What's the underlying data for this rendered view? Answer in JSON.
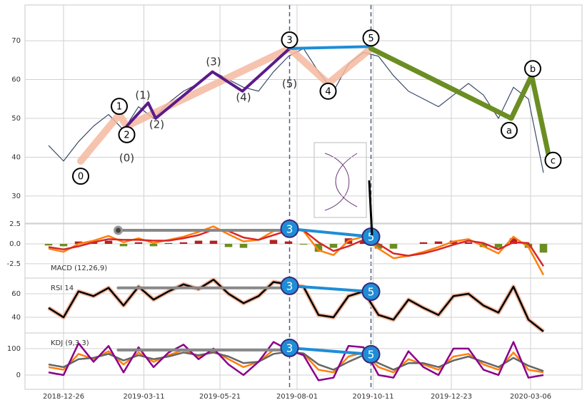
{
  "chart_data": {
    "type": "line",
    "xlim": [
      "2018-11-20",
      "2020-04-23"
    ],
    "xticks": [
      "2018-12-26",
      "2019-03-11",
      "2019-05-21",
      "2019-08-01",
      "2019-10-11",
      "2019-12-23",
      "2020-03-06"
    ],
    "vlines": [
      "2019-07-25",
      "2019-10-09"
    ],
    "x": [
      "2018-12-12",
      "2018-12-26",
      "2019-01-09",
      "2019-01-23",
      "2019-02-06",
      "2019-02-20",
      "2019-03-06",
      "2019-03-20",
      "2019-04-03",
      "2019-04-17",
      "2019-05-01",
      "2019-05-15",
      "2019-05-29",
      "2019-06-12",
      "2019-06-26",
      "2019-07-10",
      "2019-07-24",
      "2019-08-07",
      "2019-08-21",
      "2019-09-04",
      "2019-09-18",
      "2019-10-02",
      "2019-10-16",
      "2019-10-30",
      "2019-11-13",
      "2019-11-27",
      "2019-12-11",
      "2019-12-25",
      "2020-01-08",
      "2020-01-22",
      "2020-02-05",
      "2020-02-19",
      "2020-03-04",
      "2020-03-18"
    ],
    "grid": true,
    "panels": [
      {
        "ylim": [
          23,
          79.2
        ],
        "yticks": [
          30,
          40,
          50,
          60,
          70
        ],
        "series": [
          {
            "color": "#3a4a6b",
            "values": [
              43,
              39,
              44,
              48,
              51,
              47,
              53,
              50,
              54,
              57,
              59,
              62,
              60,
              58,
              57,
              62,
              66,
              68,
              62,
              57,
              64,
              67,
              66,
              61,
              57,
              55,
              53,
              56,
              59,
              56,
              50,
              58,
              55,
              36
            ]
          }
        ],
        "lines": [
          {
            "color": "#f4b9a0",
            "style": "band",
            "x": [
              "2019-01-11",
              "2019-02-16",
              "2019-02-23",
              "2019-07-25",
              "2019-08-30",
              "2019-10-09"
            ],
            "y": [
              39,
              51,
              48,
              68,
              59,
              68
            ]
          },
          {
            "color": "#5b1a8a",
            "style": "thick",
            "x": [
              "2019-02-23",
              "2019-03-15",
              "2019-03-22",
              "2019-05-14",
              "2019-06-11",
              "2019-07-25"
            ],
            "y": [
              48,
              54,
              50,
              62,
              57,
              68
            ]
          },
          {
            "color": "#1f8dd6",
            "style": "thick",
            "x": [
              "2019-07-25",
              "2019-10-09"
            ],
            "y": [
              68,
              68.5
            ]
          },
          {
            "color": "#6b8e23",
            "style": "heavy",
            "x": [
              "2019-10-09",
              "2020-02-17",
              "2020-03-07",
              "2020-03-24"
            ],
            "y": [
              68,
              50,
              61,
              39
            ]
          }
        ],
        "markers": [
          {
            "label": "0",
            "x": "2019-01-11",
            "y": 35.1
          },
          {
            "label": "1",
            "x": "2019-02-16",
            "y": 53.1
          },
          {
            "label": "2",
            "x": "2019-02-23",
            "y": 45.8
          },
          {
            "label": "3",
            "x": "2019-07-25",
            "y": 70.2
          },
          {
            "label": "4",
            "x": "2019-08-30",
            "y": 57
          },
          {
            "label": "5",
            "x": "2019-10-09",
            "y": 70.7
          },
          {
            "label": "a",
            "x": "2020-02-15",
            "y": 46.9
          },
          {
            "label": "b",
            "x": "2020-03-08",
            "y": 62.8
          },
          {
            "label": "c",
            "x": "2020-03-27",
            "y": 39.2
          }
        ],
        "annotations": [
          {
            "label": "(0)",
            "x": "2019-02-23",
            "y": 39.7
          },
          {
            "label": "(1)",
            "x": "2019-03-10",
            "y": 55.9
          },
          {
            "label": "(2)",
            "x": "2019-03-23",
            "y": 48.3
          },
          {
            "label": "(3)",
            "x": "2019-05-15",
            "y": 64.5
          },
          {
            "label": "(4)",
            "x": "2019-06-12",
            "y": 55.3
          },
          {
            "label": "(5)",
            "x": "2019-07-25",
            "y": 58.8
          }
        ]
      },
      {
        "label": "MACD (12,26,9)",
        "ylim": [
          -4.3,
          2.6
        ],
        "yticks": [
          2.5,
          {
            "value": 0,
            "label": "0.0"
          },
          -2.5
        ],
        "histogram": {
          "up_color": "#b22222",
          "down_color": "#6b8e23",
          "values": [
            -0.2,
            -0.3,
            0.3,
            0.2,
            0.4,
            -0.3,
            0.2,
            -0.3,
            0.1,
            0.2,
            0.4,
            0.4,
            -0.4,
            -0.5,
            0.0,
            0.5,
            0.3,
            -0.1,
            -1.0,
            -0.5,
            0.7,
            0.4,
            -0.6,
            -0.6,
            0.0,
            0.2,
            0.3,
            0.4,
            0.2,
            -0.4,
            -0.5,
            0.7,
            -0.5,
            -1.1
          ]
        },
        "series": [
          {
            "color": "#ff7f0e",
            "values": [
              -0.6,
              -1.0,
              0.0,
              0.4,
              1.0,
              0.2,
              0.7,
              0.1,
              0.5,
              0.9,
              1.5,
              2.2,
              1.2,
              0.3,
              0.5,
              1.6,
              2.0,
              1.6,
              -0.8,
              -1.4,
              0.4,
              0.9,
              -0.6,
              -1.8,
              -1.5,
              -1.0,
              -0.4,
              0.3,
              0.6,
              -0.3,
              -1.2,
              0.9,
              -0.4,
              -3.9
            ]
          },
          {
            "color": "#d62728",
            "values": [
              -0.4,
              -0.7,
              -0.3,
              0.2,
              0.6,
              0.5,
              0.5,
              0.4,
              0.4,
              0.7,
              1.1,
              1.8,
              1.6,
              0.8,
              0.5,
              1.1,
              1.7,
              1.7,
              0.2,
              -0.9,
              -0.3,
              0.5,
              0.0,
              -1.2,
              -1.5,
              -1.2,
              -0.7,
              -0.1,
              0.4,
              0.1,
              -0.7,
              0.2,
              0.1,
              -2.8
            ]
          }
        ],
        "lines": [
          {
            "color": "#888888",
            "style": "thick",
            "x": [
              "2019-02-15",
              "2019-07-25"
            ],
            "y": [
              1.7,
              1.7
            ]
          },
          {
            "color": "#1f8dd6",
            "style": "thick",
            "x": [
              "2019-07-25",
              "2019-10-09"
            ],
            "y": [
              1.9,
              0.9
            ]
          }
        ],
        "markers": [
          {
            "label": "3",
            "x": "2019-07-25",
            "y": 1.9
          },
          {
            "label": "5",
            "x": "2019-10-09",
            "y": 0.9
          }
        ]
      },
      {
        "label": "RSI 14",
        "ylim": [
          26.7,
          73.3
        ],
        "yticks": [
          40,
          60
        ],
        "series": [
          {
            "color": "#000000",
            "halo": "#f4b9a0",
            "values": [
              48,
              40,
              62,
              58,
              65,
              50,
              66,
              55,
              62,
              68,
              64,
              72,
              60,
              52,
              58,
              70,
              68,
              66,
              42,
              40,
              58,
              62,
              42,
              38,
              55,
              48,
              42,
              58,
              60,
              50,
              44,
              66,
              38,
              28
            ]
          }
        ],
        "lines": [
          {
            "color": "#888888",
            "style": "thick",
            "x": [
              "2019-02-15",
              "2019-07-25"
            ],
            "y": [
              65,
              65
            ]
          },
          {
            "color": "#1f8dd6",
            "style": "thick",
            "x": [
              "2019-07-25",
              "2019-10-09"
            ],
            "y": [
              66.7,
              61.8
            ]
          }
        ],
        "markers": [
          {
            "label": "3",
            "x": "2019-07-25",
            "y": 66.7
          },
          {
            "label": "5",
            "x": "2019-10-09",
            "y": 61.8
          }
        ]
      },
      {
        "label": "KDJ (9,3,3)",
        "ylim": [
          -54,
          159
        ],
        "yticks": [
          0,
          100
        ],
        "series": [
          {
            "color": "#ff7f0e",
            "values": [
              30,
              20,
              80,
              60,
              90,
              40,
              85,
              50,
              75,
              95,
              70,
              90,
              60,
              30,
              50,
              95,
              90,
              80,
              20,
              10,
              70,
              85,
              30,
              10,
              60,
              40,
              20,
              70,
              80,
              40,
              20,
              85,
              20,
              10
            ]
          },
          {
            "color": "#666666",
            "values": [
              40,
              30,
              60,
              65,
              80,
              55,
              75,
              60,
              70,
              85,
              75,
              85,
              70,
              45,
              50,
              80,
              88,
              82,
              40,
              20,
              50,
              75,
              45,
              20,
              45,
              45,
              30,
              55,
              70,
              50,
              30,
              65,
              35,
              15
            ]
          },
          {
            "color": "#8b008b",
            "values": [
              10,
              0,
              120,
              50,
              110,
              10,
              105,
              30,
              85,
              115,
              60,
              100,
              40,
              0,
              50,
              125,
              95,
              75,
              -20,
              -10,
              110,
              105,
              0,
              -10,
              90,
              30,
              0,
              100,
              100,
              20,
              0,
              125,
              -10,
              0
            ]
          }
        ],
        "lines": [
          {
            "color": "#888888",
            "style": "thick",
            "x": [
              "2019-02-15",
              "2019-07-25"
            ],
            "y": [
              94.6,
              94.6
            ]
          },
          {
            "color": "#1f8dd6",
            "style": "thick",
            "x": [
              "2019-07-25",
              "2019-10-09"
            ],
            "y": [
              102.7,
              78.4
            ]
          }
        ],
        "markers": [
          {
            "label": "3",
            "x": "2019-07-25",
            "y": 102.7
          },
          {
            "label": "5",
            "x": "2019-10-09",
            "y": 78.4
          }
        ]
      }
    ]
  }
}
